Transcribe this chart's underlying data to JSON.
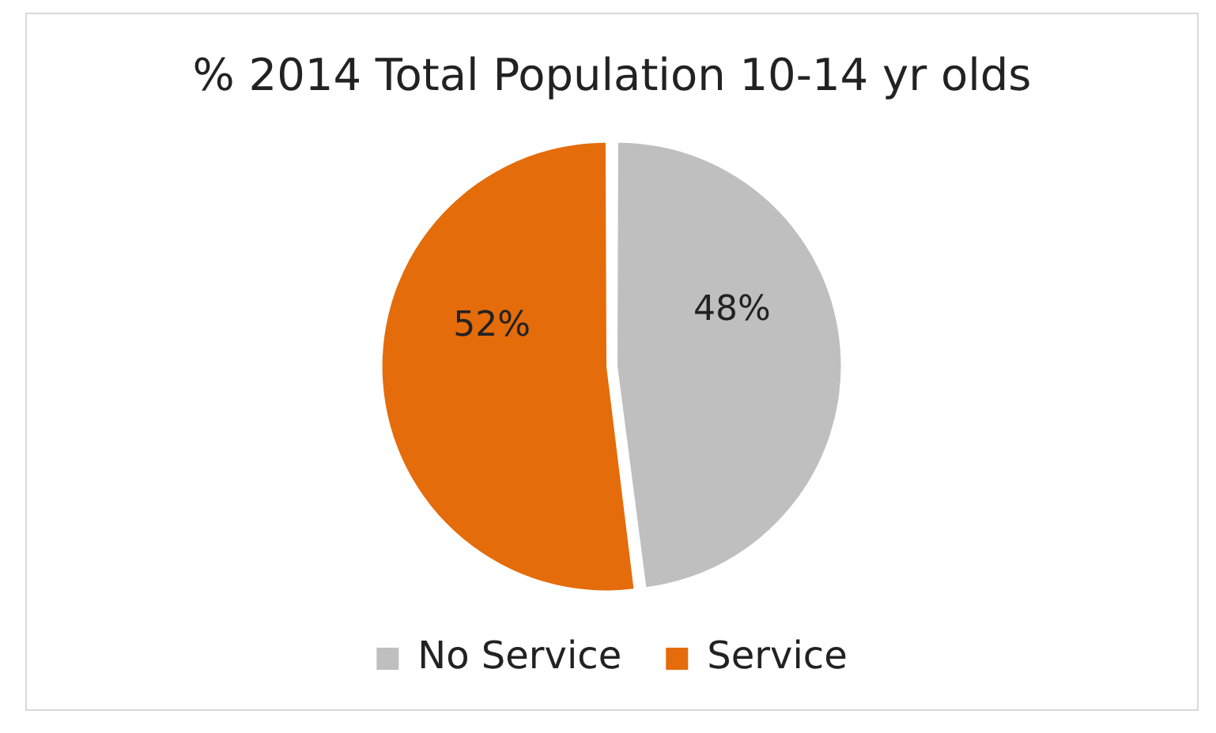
{
  "chart_data": {
    "type": "pie",
    "title": "% 2014 Total Population 10-14 yr olds",
    "categories": [
      "No Service",
      "Service"
    ],
    "values": [
      48,
      52
    ],
    "colors": [
      "#bfbfbf",
      "#e46c0a"
    ],
    "value_labels": [
      "48%",
      "52%"
    ],
    "legend": "bottom"
  }
}
